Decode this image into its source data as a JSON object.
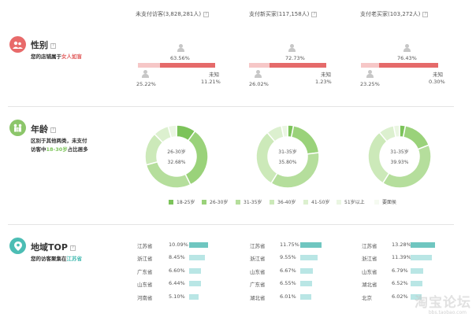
{
  "columns": [
    {
      "label": "未支付访客(3,828,281人)"
    },
    {
      "label": "支付新买家(117,158人)"
    },
    {
      "label": "支付老买家(103,272人)"
    }
  ],
  "help_glyph": "?",
  "gender": {
    "title": "性别",
    "desc_prefix": "您的店铺属于",
    "desc_highlight": "女人如盲",
    "groups": [
      {
        "female": "63.56%",
        "male": "25.22%",
        "unknown_label": "未知",
        "unknown": "11.21%",
        "female_share": 63.56,
        "male_share": 25.22
      },
      {
        "female": "72.73%",
        "male": "26.02%",
        "unknown_label": "未知",
        "unknown": "1.23%",
        "female_share": 72.73,
        "male_share": 26.02
      },
      {
        "female": "76.43%",
        "male": "23.25%",
        "unknown_label": "未知",
        "unknown": "0.30%",
        "female_share": 76.43,
        "male_share": 23.25
      }
    ]
  },
  "age": {
    "title": "年龄",
    "desc_line1": "区别于其他两类，未支付",
    "desc_line2_prefix": "访客中",
    "desc_highlight": "18-30岁",
    "desc_line2_suffix": "占比居多"
  },
  "chart_data": [
    {
      "type": "pie",
      "title": "",
      "center_label": "26-30岁",
      "center_value": "32.68%",
      "categories": [
        "18-25岁",
        "26-30岁",
        "31-35岁",
        "36-40岁",
        "41-50岁",
        "51岁以上",
        "要面侯"
      ],
      "values": [
        10,
        32.68,
        28,
        17,
        8,
        4.32,
        0
      ]
    },
    {
      "type": "pie",
      "title": "",
      "center_label": "31-35岁",
      "center_value": "35.80%",
      "categories": [
        "18-25岁",
        "26-30岁",
        "31-35岁",
        "36-40岁",
        "41-50岁",
        "51岁以上",
        "要面侯"
      ],
      "values": [
        3,
        20,
        35.8,
        30,
        8,
        3.2,
        0
      ]
    },
    {
      "type": "pie",
      "title": "",
      "center_label": "31-35岁",
      "center_value": "39.93%",
      "categories": [
        "18-25岁",
        "26-30岁",
        "31-35岁",
        "36-40岁",
        "41-50岁",
        "51岁以上",
        "要面侯"
      ],
      "values": [
        3,
        16,
        39.93,
        30,
        8,
        3.07,
        0
      ]
    }
  ],
  "legend": [
    {
      "label": "18-25岁",
      "color": "#7cc35a"
    },
    {
      "label": "26-30岁",
      "color": "#9ad27a"
    },
    {
      "label": "31-35岁",
      "color": "#b5de9c"
    },
    {
      "label": "36-40岁",
      "color": "#cce9b9"
    },
    {
      "label": "41-50岁",
      "color": "#dcf0cf"
    },
    {
      "label": "51岁以上",
      "color": "#eaf6e2"
    },
    {
      "label": "要面侯",
      "color": "#f5faf1"
    }
  ],
  "region": {
    "title": "地域TOP",
    "desc_prefix": "您的访客聚集在",
    "desc_highlight": "江苏省",
    "groups": [
      [
        {
          "name": "江苏省",
          "pct": "10.09%",
          "value": 10.09
        },
        {
          "name": "浙江省",
          "pct": "8.45%",
          "value": 8.45
        },
        {
          "name": "广东省",
          "pct": "6.60%",
          "value": 6.6
        },
        {
          "name": "山东省",
          "pct": "6.44%",
          "value": 6.44
        },
        {
          "name": "河南省",
          "pct": "5.10%",
          "value": 5.1
        }
      ],
      [
        {
          "name": "江苏省",
          "pct": "11.75%",
          "value": 11.75
        },
        {
          "name": "浙江省",
          "pct": "9.55%",
          "value": 9.55
        },
        {
          "name": "山东省",
          "pct": "6.67%",
          "value": 6.67
        },
        {
          "name": "广东省",
          "pct": "6.55%",
          "value": 6.55
        },
        {
          "name": "湖北省",
          "pct": "6.01%",
          "value": 6.01
        }
      ],
      [
        {
          "name": "江苏省",
          "pct": "13.28%",
          "value": 13.28
        },
        {
          "name": "浙江省",
          "pct": "11.39%",
          "value": 11.39
        },
        {
          "name": "山东省",
          "pct": "6.79%",
          "value": 6.79
        },
        {
          "name": "湖北省",
          "pct": "6.52%",
          "value": 6.52
        },
        {
          "name": "北京",
          "pct": "6.02%",
          "value": 6.02
        }
      ]
    ]
  },
  "watermark": {
    "text": "淘宝论坛",
    "sub": "bbs.taobao.com"
  },
  "colors": {
    "female": "#e56a6a",
    "female_light": "#f6c7c7",
    "region_top": "#6fc6c0",
    "region_rest": "#b9e6e5",
    "gender_icon": "#e86a6a",
    "age_icon": "#8cc66a",
    "region_icon": "#4cbdb4"
  }
}
